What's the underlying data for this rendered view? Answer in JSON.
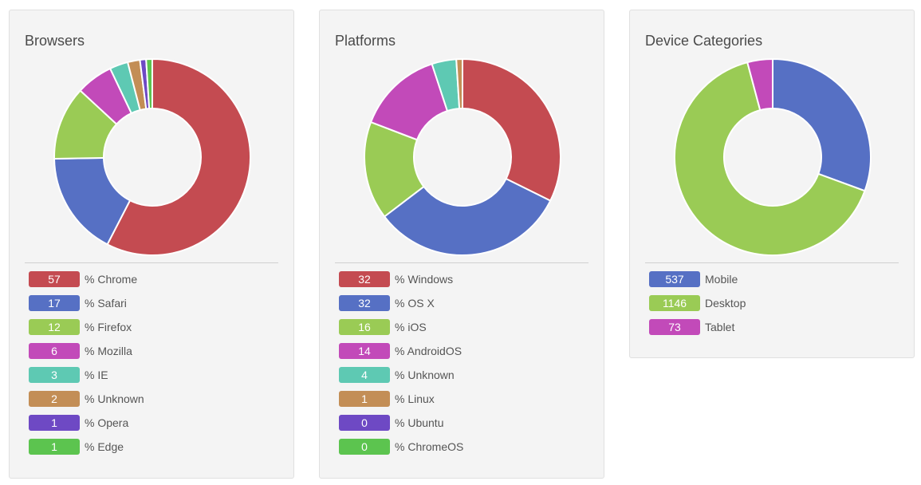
{
  "chart_data": [
    {
      "type": "pie",
      "title": "Browsers",
      "series": [
        {
          "name": "% Chrome",
          "value": 57,
          "color": "#c44b51"
        },
        {
          "name": "% Safari",
          "value": 17,
          "color": "#5670c4"
        },
        {
          "name": "% Firefox",
          "value": 12,
          "color": "#9acb55"
        },
        {
          "name": "% Mozilla",
          "value": 6,
          "color": "#c24ab9"
        },
        {
          "name": "% IE",
          "value": 3,
          "color": "#5ec9b3"
        },
        {
          "name": "% Unknown",
          "value": 2,
          "color": "#c38e56"
        },
        {
          "name": "% Opera",
          "value": 1,
          "color": "#6e49c4"
        },
        {
          "name": "% Edge",
          "value": 1,
          "color": "#5cc44f"
        }
      ]
    },
    {
      "type": "pie",
      "title": "Platforms",
      "series": [
        {
          "name": "% Windows",
          "value": 32,
          "color": "#c44b51"
        },
        {
          "name": "% OS X",
          "value": 32,
          "color": "#5670c4"
        },
        {
          "name": "% iOS",
          "value": 16,
          "color": "#9acb55"
        },
        {
          "name": "% AndroidOS",
          "value": 14,
          "color": "#c24ab9"
        },
        {
          "name": "% Unknown",
          "value": 4,
          "color": "#5ec9b3"
        },
        {
          "name": "% Linux",
          "value": 1,
          "color": "#c38e56"
        },
        {
          "name": "% Ubuntu",
          "value": 0,
          "color": "#6e49c4"
        },
        {
          "name": "% ChromeOS",
          "value": 0,
          "color": "#5cc44f"
        }
      ]
    },
    {
      "type": "pie",
      "title": "Device Categories",
      "series": [
        {
          "name": "Mobile",
          "value": 537,
          "color": "#5670c4"
        },
        {
          "name": "Desktop",
          "value": 1146,
          "color": "#9acb55"
        },
        {
          "name": "Tablet",
          "value": 73,
          "color": "#c24ab9"
        }
      ]
    }
  ]
}
